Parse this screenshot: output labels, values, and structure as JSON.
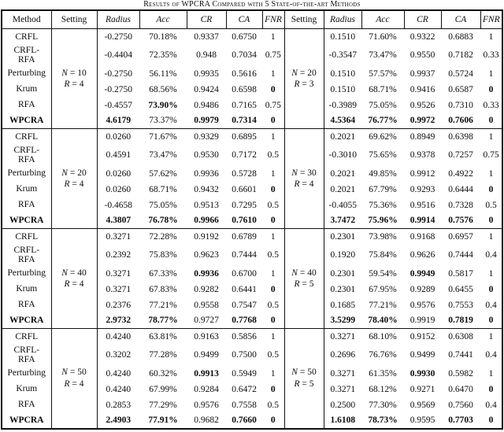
{
  "title": "Results of WPCRA Compared with 5 State-of-the-art Methods",
  "table": {
    "columns": [
      "Method",
      "Setting",
      "Radius",
      "Acc",
      "CR",
      "CA",
      "FNR",
      "Setting",
      "Radius",
      "Acc",
      "CR",
      "CA",
      "FNR"
    ],
    "italic_columns": [
      "Radius",
      "Acc",
      "CR",
      "CA",
      "FNR"
    ],
    "blocks": [
      {
        "setting_left": [
          "N = 10",
          "R = 4"
        ],
        "setting_right": [
          "N = 20",
          "R = 3"
        ],
        "rows": [
          {
            "method": "CRFL",
            "left": [
              "-0.2750",
              "70.18%",
              "0.9337",
              "0.6750",
              "1"
            ],
            "bold_left": [],
            "right": [
              "0.1510",
              "71.60%",
              "0.9322",
              "0.6883",
              "1"
            ],
            "bold_right": [],
            "method_bold": false
          },
          {
            "method": "CRFL-RFA",
            "method_lines": [
              "CRFL-",
              "RFA"
            ],
            "left": [
              "-0.4404",
              "72.35%",
              "0.948",
              "0.7034",
              "0.75"
            ],
            "bold_left": [],
            "right": [
              "-0.3547",
              "73.47%",
              "0.9550",
              "0.7182",
              "0.33"
            ],
            "bold_right": [],
            "method_bold": false
          },
          {
            "method": "Perturbing",
            "left": [
              "-0.2750",
              "56.11%",
              "0.9935",
              "0.5616",
              "1"
            ],
            "bold_left": [],
            "right": [
              "0.1510",
              "57.57%",
              "0.9937",
              "0.5724",
              "1"
            ],
            "bold_right": [],
            "method_bold": false
          },
          {
            "method": "Krum",
            "left": [
              "-0.2750",
              "68.56%",
              "0.9424",
              "0.6598",
              "0"
            ],
            "bold_left": [
              4
            ],
            "right": [
              "0.1510",
              "68.71%",
              "0.9416",
              "0.6587",
              "0"
            ],
            "bold_right": [
              4
            ],
            "method_bold": false
          },
          {
            "method": "RFA",
            "left": [
              "-0.4557",
              "73.90%",
              "0.9486",
              "0.7165",
              "0.75"
            ],
            "bold_left": [
              1
            ],
            "right": [
              "-0.3989",
              "75.05%",
              "0.9526",
              "0.7310",
              "0.33"
            ],
            "bold_right": [],
            "method_bold": false
          },
          {
            "method": "WPCRA",
            "left": [
              "4.6179",
              "73.37%",
              "0.9979",
              "0.7314",
              "0"
            ],
            "bold_left": [
              0,
              2,
              3,
              4
            ],
            "right": [
              "4.5364",
              "76.77%",
              "0.9972",
              "0.7606",
              "0"
            ],
            "bold_right": [
              0,
              1,
              2,
              3,
              4
            ],
            "method_bold": true
          }
        ]
      },
      {
        "setting_left": [
          "N = 20",
          "R = 4"
        ],
        "setting_right": [
          "N = 30",
          "R = 4"
        ],
        "rows": [
          {
            "method": "CRFL",
            "left": [
              "0.0260",
              "71.67%",
              "0.9329",
              "0.6895",
              "1"
            ],
            "bold_left": [],
            "right": [
              "0.2021",
              "69.62%",
              "0.8949",
              "0.6398",
              "1"
            ],
            "bold_right": [],
            "method_bold": false
          },
          {
            "method": "CRFL-RFA",
            "method_lines": [
              "CRFL-",
              "RFA"
            ],
            "left": [
              "0.4591",
              "73.47%",
              "0.9530",
              "0.7172",
              "0.5"
            ],
            "bold_left": [],
            "right": [
              "-0.3010",
              "75.65%",
              "0.9378",
              "0.7257",
              "0.75"
            ],
            "bold_right": [],
            "method_bold": false
          },
          {
            "method": "Perturbing",
            "left": [
              "0.0260",
              "57.62%",
              "0.9936",
              "0.5728",
              "1"
            ],
            "bold_left": [],
            "right": [
              "0.2021",
              "49.85%",
              "0.9912",
              "0.4922",
              "1"
            ],
            "bold_right": [],
            "method_bold": false
          },
          {
            "method": "Krum",
            "left": [
              "0.0260",
              "68.71%",
              "0.9432",
              "0.6601",
              "0"
            ],
            "bold_left": [
              4
            ],
            "right": [
              "0.2021",
              "67.79%",
              "0.9293",
              "0.6444",
              "0"
            ],
            "bold_right": [
              4
            ],
            "method_bold": false
          },
          {
            "method": "RFA",
            "left": [
              "-0.4658",
              "75.05%",
              "0.9513",
              "0.7295",
              "0.5"
            ],
            "bold_left": [],
            "right": [
              "-0.4055",
              "75.36%",
              "0.9516",
              "0.7328",
              "0.5"
            ],
            "bold_right": [],
            "method_bold": false
          },
          {
            "method": "WPCRA",
            "left": [
              "4.3807",
              "76.78%",
              "0.9966",
              "0.7610",
              "0"
            ],
            "bold_left": [
              0,
              1,
              2,
              3,
              4
            ],
            "right": [
              "3.7472",
              "75.96%",
              "0.9914",
              "0.7576",
              "0"
            ],
            "bold_right": [
              0,
              1,
              2,
              3,
              4
            ],
            "method_bold": true
          }
        ]
      },
      {
        "setting_left": [
          "N = 40",
          "R = 4"
        ],
        "setting_right": [
          "N = 40",
          "R = 5"
        ],
        "rows": [
          {
            "method": "CRFL",
            "left": [
              "0.3271",
              "72.28%",
              "0.9192",
              "0.6789",
              "1"
            ],
            "bold_left": [],
            "right": [
              "0.2301",
              "73.98%",
              "0.9168",
              "0.6957",
              "1"
            ],
            "bold_right": [],
            "method_bold": false
          },
          {
            "method": "CRFL-RFA",
            "method_lines": [
              "CRFL-",
              "RFA"
            ],
            "left": [
              "0.2392",
              "75.83%",
              "0.9623",
              "0.7444",
              "0.5"
            ],
            "bold_left": [],
            "right": [
              "0.1920",
              "75.84%",
              "0.9626",
              "0.7444",
              "0.4"
            ],
            "bold_right": [],
            "method_bold": false
          },
          {
            "method": "Perturbing",
            "left": [
              "0.3271",
              "67.33%",
              "0.9936",
              "0.6700",
              "1"
            ],
            "bold_left": [
              2
            ],
            "right": [
              "0.2301",
              "59.54%",
              "0.9949",
              "0.5817",
              "1"
            ],
            "bold_right": [
              2
            ],
            "method_bold": false
          },
          {
            "method": "Krum",
            "left": [
              "0.3271",
              "67.83%",
              "0.9282",
              "0.6441",
              "0"
            ],
            "bold_left": [
              4
            ],
            "right": [
              "0.2301",
              "67.95%",
              "0.9289",
              "0.6455",
              "0"
            ],
            "bold_right": [
              4
            ],
            "method_bold": false
          },
          {
            "method": "RFA",
            "left": [
              "0.2376",
              "77.21%",
              "0.9558",
              "0.7547",
              "0.5"
            ],
            "bold_left": [],
            "right": [
              "0.1685",
              "77.21%",
              "0.9576",
              "0.7553",
              "0.4"
            ],
            "bold_right": [],
            "method_bold": false
          },
          {
            "method": "WPCRA",
            "left": [
              "2.9732",
              "78.77%",
              "0.9727",
              "0.7768",
              "0"
            ],
            "bold_left": [
              0,
              1,
              3,
              4
            ],
            "right": [
              "3.5299",
              "78.40%",
              "0.9919",
              "0.7819",
              "0"
            ],
            "bold_right": [
              0,
              1,
              3,
              4
            ],
            "method_bold": true
          }
        ]
      },
      {
        "setting_left": [
          "N = 50",
          "R = 4"
        ],
        "setting_right": [
          "N = 50",
          "R = 5"
        ],
        "rows": [
          {
            "method": "CRFL",
            "left": [
              "0.4240",
              "63.81%",
              "0.9163",
              "0.5856",
              "1"
            ],
            "bold_left": [],
            "right": [
              "0.3271",
              "68.10%",
              "0.9152",
              "0.6308",
              "1"
            ],
            "bold_right": [],
            "method_bold": false
          },
          {
            "method": "CRFL-RFA",
            "method_lines": [
              "CRFL-",
              "RFA"
            ],
            "left": [
              "0.3202",
              "77.28%",
              "0.9499",
              "0.7500",
              "0.5"
            ],
            "bold_left": [],
            "right": [
              "0.2696",
              "76.76%",
              "0.9499",
              "0.7441",
              "0.4"
            ],
            "bold_right": [],
            "method_bold": false
          },
          {
            "method": "Perturbing",
            "left": [
              "0.4240",
              "60.32%",
              "0.9913",
              "0.5949",
              "1"
            ],
            "bold_left": [
              2
            ],
            "right": [
              "0.3271",
              "61.35%",
              "0.9930",
              "0.5982",
              "1"
            ],
            "bold_right": [
              2
            ],
            "method_bold": false
          },
          {
            "method": "Krum",
            "left": [
              "0.4240",
              "67.99%",
              "0.9284",
              "0.6472",
              "0"
            ],
            "bold_left": [
              4
            ],
            "right": [
              "0.3271",
              "68.12%",
              "0.9271",
              "0.6470",
              "0"
            ],
            "bold_right": [
              4
            ],
            "method_bold": false
          },
          {
            "method": "RFA",
            "left": [
              "0.2853",
              "77.29%",
              "0.9576",
              "0.7558",
              "0.5"
            ],
            "bold_left": [],
            "right": [
              "0.2500",
              "77.30%",
              "0.9569",
              "0.7560",
              "0.4"
            ],
            "bold_right": [],
            "method_bold": false
          },
          {
            "method": "WPCRA",
            "left": [
              "2.4903",
              "77.91%",
              "0.9682",
              "0.7660",
              "0"
            ],
            "bold_left": [
              0,
              1,
              3,
              4
            ],
            "right": [
              "1.6108",
              "78.73%",
              "0.9595",
              "0.7703",
              "0"
            ],
            "bold_right": [
              0,
              1,
              3,
              4
            ],
            "method_bold": true
          }
        ]
      }
    ]
  }
}
